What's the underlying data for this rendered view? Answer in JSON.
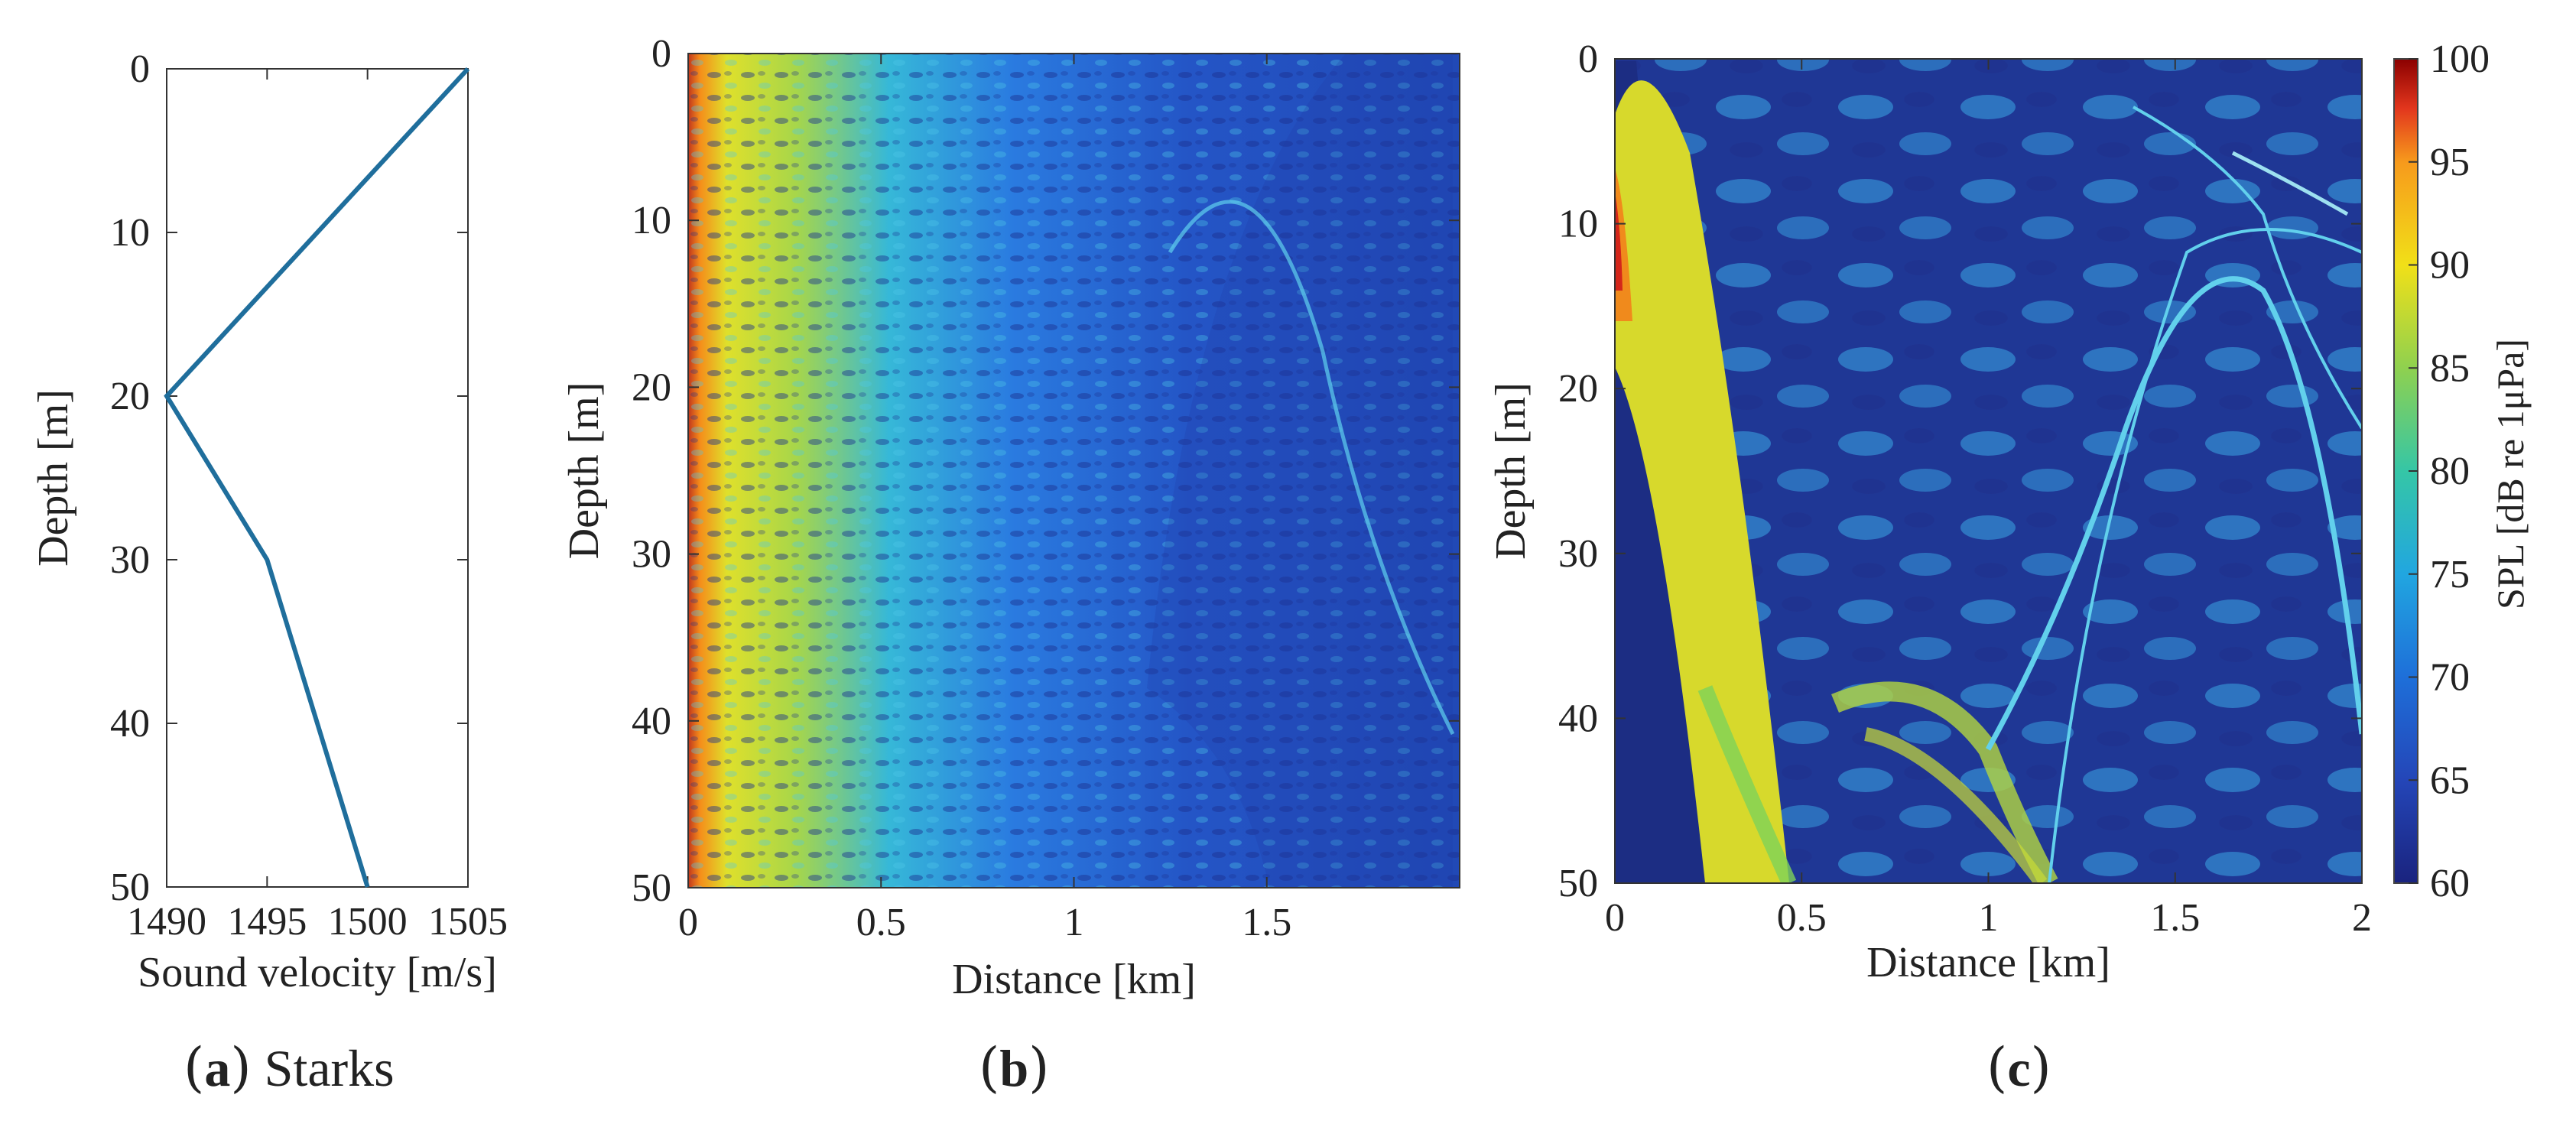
{
  "captions": {
    "a_letter": "a",
    "a_name": "Starks",
    "b_letter": "b",
    "c_letter": "c"
  },
  "chart_data": [
    {
      "type": "line",
      "panel": "a",
      "xlabel": "Sound velocity [m/s]",
      "ylabel": "Depth [m]",
      "xlim": [
        1490,
        1505
      ],
      "ylim": [
        0,
        50
      ],
      "y_reversed": true,
      "xticks": [
        1490,
        1495,
        1500,
        1505
      ],
      "yticks": [
        0,
        10,
        20,
        30,
        40,
        50
      ],
      "line_color": "#1f6e9c",
      "series": [
        {
          "x": [
            1505,
            1490,
            1495,
            1500
          ],
          "y": [
            0,
            20,
            30,
            50
          ]
        }
      ],
      "grid": false
    },
    {
      "type": "heatmap",
      "panel": "b",
      "xlabel": "Distance [km]",
      "ylabel": "Depth [m]",
      "xlim": [
        0,
        2
      ],
      "ylim": [
        0,
        50
      ],
      "y_reversed": true,
      "xticks": [
        0,
        0.5,
        1,
        1.5
      ],
      "yticks": [
        0,
        10,
        20,
        30,
        40,
        50
      ],
      "value_range": [
        60,
        100
      ],
      "colormap": "parula/jet-like",
      "description_levels": {
        "near_source": 95,
        "near_field": 82,
        "mid_field": 72,
        "far_field": 65
      }
    },
    {
      "type": "heatmap",
      "panel": "c",
      "xlabel": "Distance [km]",
      "ylabel": "Depth [m]",
      "xlim": [
        0,
        2
      ],
      "ylim": [
        0,
        50
      ],
      "y_reversed": true,
      "xticks": [
        0,
        0.5,
        1,
        1.5,
        2
      ],
      "yticks": [
        0,
        10,
        20,
        30,
        40,
        50
      ],
      "value_range": [
        60,
        100
      ],
      "source_depth": 10,
      "colorbar": {
        "label": "SPL [dB re 1μPa]",
        "ticks": [
          60,
          65,
          70,
          75,
          80,
          85,
          90,
          95,
          100
        ],
        "colors": [
          "#1a237e",
          "#2446b8",
          "#1e6fd9",
          "#21a6e0",
          "#35c6a6",
          "#8fd14f",
          "#f1e018",
          "#f79a1c",
          "#e2361d",
          "#8b0000"
        ]
      }
    }
  ]
}
